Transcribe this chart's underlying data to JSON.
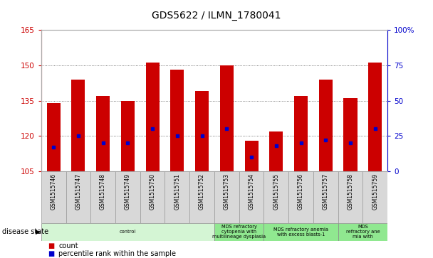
{
  "title": "GDS5622 / ILMN_1780041",
  "samples": [
    "GSM1515746",
    "GSM1515747",
    "GSM1515748",
    "GSM1515749",
    "GSM1515750",
    "GSM1515751",
    "GSM1515752",
    "GSM1515753",
    "GSM1515754",
    "GSM1515755",
    "GSM1515756",
    "GSM1515757",
    "GSM1515758",
    "GSM1515759"
  ],
  "counts": [
    134,
    144,
    137,
    135,
    151,
    148,
    139,
    150,
    118,
    122,
    137,
    144,
    136,
    151
  ],
  "percentile_ranks": [
    17,
    25,
    20,
    20,
    30,
    25,
    25,
    30,
    10,
    18,
    20,
    22,
    20,
    30
  ],
  "ylim_left": [
    105,
    165
  ],
  "ylim_right": [
    0,
    100
  ],
  "yticks_left": [
    105,
    120,
    135,
    150,
    165
  ],
  "yticks_right": [
    0,
    25,
    50,
    75,
    100
  ],
  "bar_color": "#cc0000",
  "dot_color": "#0000cc",
  "bar_bottom": 105,
  "bar_width": 0.55,
  "disease_groups": [
    {
      "label": "control",
      "start": 0,
      "end": 7,
      "color": "#d4f5d4"
    },
    {
      "label": "MDS refractory\ncytopenia with\nmultilineage dysplasia",
      "start": 7,
      "end": 9,
      "color": "#90e890"
    },
    {
      "label": "MDS refractory anemia\nwith excess blasts-1",
      "start": 9,
      "end": 12,
      "color": "#90e890"
    },
    {
      "label": "MDS\nrefractory ane\nmia with",
      "start": 12,
      "end": 14,
      "color": "#90e890"
    }
  ],
  "disease_state_label": "disease state",
  "legend_count_label": "count",
  "legend_percentile_label": "percentile rank within the sample",
  "grid_color": "#555555",
  "tick_color_left": "#cc0000",
  "tick_color_right": "#0000cc",
  "bg_color": "#ffffff",
  "axes_bg_color": "#ffffff",
  "sample_box_color": "#d8d8d8",
  "sample_box_edge": "#999999"
}
